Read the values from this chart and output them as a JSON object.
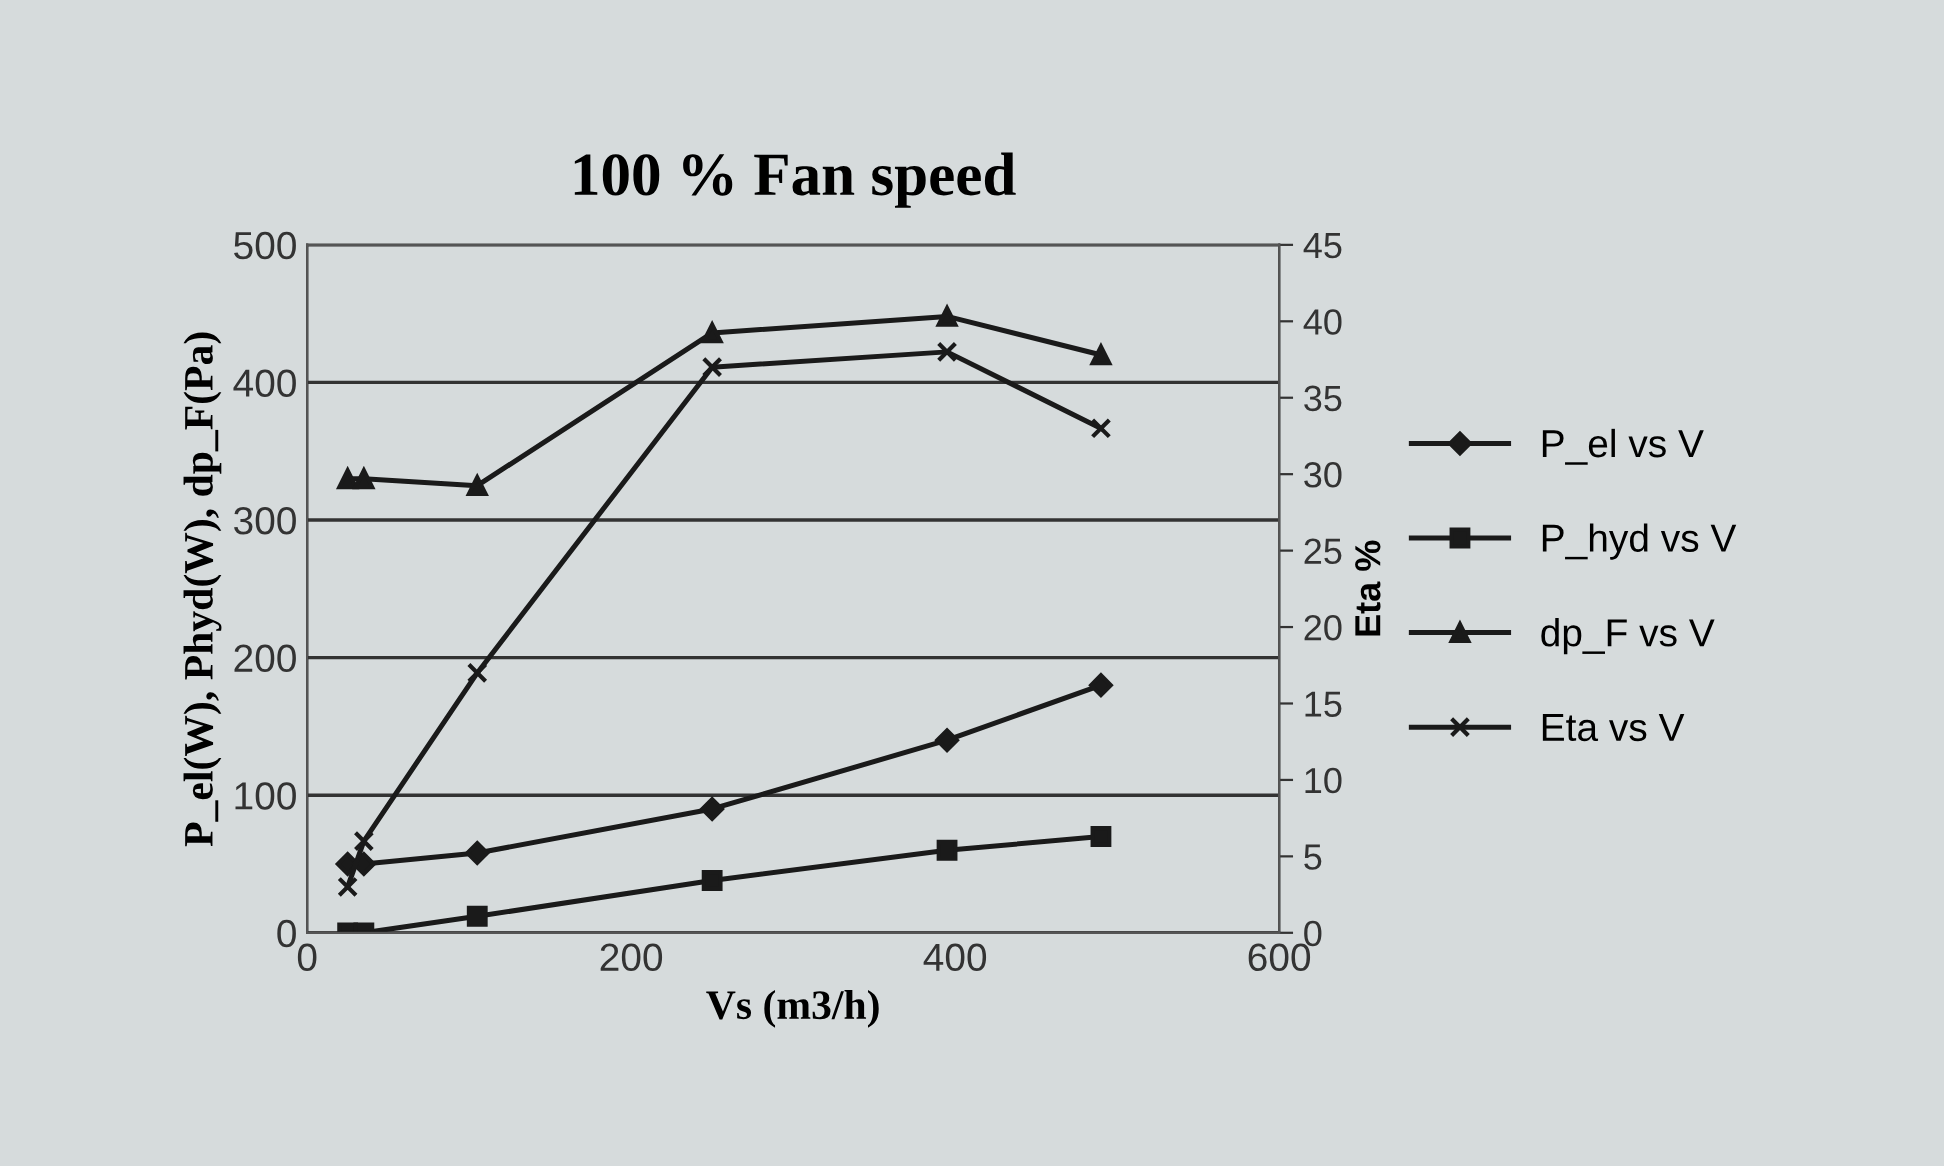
{
  "chart_data": {
    "type": "line",
    "title": "100 % Fan speed",
    "xlabel": "Vs (m3/h)",
    "ylabel": "P_el(W), Phyd(W), dp_F(Pa)",
    "y2label": "Eta %",
    "x": [
      25,
      35,
      105,
      250,
      395,
      490
    ],
    "series": [
      {
        "name": "P_el vs V",
        "color": "#1a1a1a",
        "marker": "diamond",
        "values": [
          50,
          50,
          58,
          90,
          140,
          180
        ]
      },
      {
        "name": "P_hyd vs V",
        "color": "#1a1a1a",
        "marker": "square",
        "values": [
          0,
          0,
          12,
          38,
          60,
          70
        ]
      },
      {
        "name": "dp_F vs V",
        "color": "#1a1a1a",
        "marker": "triangle",
        "values": [
          330,
          330,
          325,
          436,
          448,
          420
        ]
      },
      {
        "name": "Eta vs V",
        "color": "#1a1a1a",
        "marker": "cross",
        "axis": "y2",
        "values": [
          3,
          6,
          17,
          37,
          38,
          33
        ]
      }
    ],
    "xlim": [
      0,
      600
    ],
    "xticks": [
      0,
      200,
      400,
      600
    ],
    "ylim": [
      0,
      500
    ],
    "yticks": [
      0,
      100,
      200,
      300,
      400,
      500
    ],
    "y2lim": [
      0,
      45
    ],
    "y2ticks": [
      0,
      5,
      10,
      15,
      20,
      25,
      30,
      35,
      40,
      45
    ],
    "grid": "y",
    "legend": "right"
  }
}
